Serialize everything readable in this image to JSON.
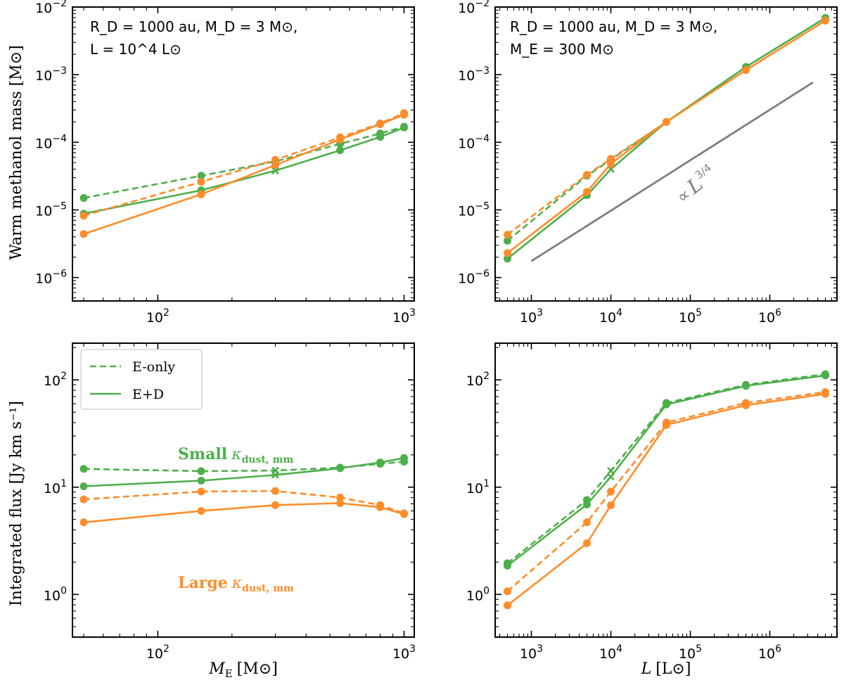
{
  "colors": {
    "green": "#4daf4a",
    "orange": "#ff8c2a",
    "ref": "#7f7f7f"
  },
  "axis_labels": {
    "ylabel_top": "Warm methanol mass [M⊙]",
    "ylabel_bottom": "Integrated flux [Jy km s⁻¹]",
    "xlabel_left_var": "M",
    "xlabel_left_sub": "E",
    "xlabel_left_unit": "[M⊙]",
    "xlabel_right_var": "L",
    "xlabel_right_unit": "[L⊙]"
  },
  "annotations": {
    "tl_line1": "R_D = 1000 au, M_D = 3 M⊙,",
    "tl_line2": "L = 10^4 L⊙",
    "tr_line1": "R_D = 1000 au, M_D = 3 M⊙,",
    "tr_line2": "M_E = 300 M⊙",
    "ref_label": "∝ L^3/4",
    "ref_prop": "∝",
    "ref_var": "L",
    "ref_exp": "3/4",
    "small_bold": "Small",
    "small_kappa": "κ",
    "small_sub": "dust, mm",
    "large_bold": "Large",
    "large_kappa": "κ",
    "large_sub": "dust, mm"
  },
  "legend": {
    "dashed": "E-only",
    "solid": "E+D"
  },
  "ticklabels": {
    "base": "10",
    "y_top_exps": [
      "−6",
      "−5",
      "−4",
      "−3",
      "−2"
    ],
    "y_bottom_exps": [
      "0",
      "1",
      "2"
    ],
    "x_left_exps": [
      "2",
      "3"
    ],
    "x_right_exps": [
      "3",
      "4",
      "5",
      "6"
    ]
  },
  "chart_data": [
    {
      "type": "line",
      "panel": "top-left",
      "xscale": "log",
      "yscale": "log",
      "xlim": [
        45,
        1100
      ],
      "ylim": [
        4.5e-07,
        0.01
      ],
      "xlabel": "M_E [M⊙]",
      "ylabel": "Warm methanol mass [M⊙]",
      "series": [
        {
          "name": "E-only (small κ)",
          "color": "green",
          "dash": true,
          "x": [
            50,
            150,
            300,
            550,
            800,
            1000
          ],
          "y": [
            1.5e-05,
            3.2e-05,
            5.2e-05,
            9.5e-05,
            0.000135,
            0.00017
          ],
          "cross_index": -1
        },
        {
          "name": "E+D (small κ)",
          "color": "green",
          "dash": false,
          "x": [
            50,
            150,
            300,
            550,
            800,
            1000
          ],
          "y": [
            8.8e-06,
            1.95e-05,
            3.8e-05,
            7.6e-05,
            0.00012,
            0.000165
          ],
          "cross_index": 2
        },
        {
          "name": "E-only (large κ)",
          "color": "orange",
          "dash": true,
          "x": [
            50,
            150,
            300,
            550,
            800,
            1000
          ],
          "y": [
            8.2e-06,
            2.6e-05,
            5.5e-05,
            0.000118,
            0.00019,
            0.00027
          ],
          "cross_index": -1
        },
        {
          "name": "E+D (large κ)",
          "color": "orange",
          "dash": false,
          "x": [
            50,
            150,
            300,
            550,
            800,
            1000
          ],
          "y": [
            4.4e-06,
            1.7e-05,
            4.6e-05,
            0.00011,
            0.000185,
            0.000255
          ],
          "cross_index": -1
        }
      ]
    },
    {
      "type": "line",
      "panel": "top-right",
      "xscale": "log",
      "yscale": "log",
      "xlim": [
        350,
        7000000
      ],
      "ylim": [
        4.5e-07,
        0.01
      ],
      "xlabel": "L [L⊙]",
      "ylabel": "",
      "series": [
        {
          "name": "E-only (small κ)",
          "color": "green",
          "dash": true,
          "x": [
            500,
            5000,
            10000,
            50000,
            500000,
            5000000
          ],
          "y": [
            3.5e-06,
            3.2e-05,
            5.5e-05,
            0.0002,
            0.0013,
            0.0069
          ],
          "cross_index": -1
        },
        {
          "name": "E+D (small κ)",
          "color": "green",
          "dash": false,
          "x": [
            500,
            5000,
            10000,
            50000,
            500000,
            5000000
          ],
          "y": [
            1.9e-06,
            1.65e-05,
            4e-05,
            0.0002,
            0.0013,
            0.0069
          ],
          "cross_index": 2
        },
        {
          "name": "E-only (large κ)",
          "color": "orange",
          "dash": true,
          "x": [
            500,
            5000,
            10000,
            50000,
            500000,
            5000000
          ],
          "y": [
            4.3e-06,
            3.3e-05,
            5.7e-05,
            0.0002,
            0.00117,
            0.0063
          ],
          "cross_index": -1
        },
        {
          "name": "E+D (large κ)",
          "color": "orange",
          "dash": false,
          "x": [
            500,
            5000,
            10000,
            50000,
            500000,
            5000000
          ],
          "y": [
            2.3e-06,
            1.85e-05,
            4.8e-05,
            0.0002,
            0.00117,
            0.0063
          ],
          "cross_index": -1
        },
        {
          "name": "∝ L^3/4 reference",
          "color": "ref",
          "dash": false,
          "marker": false,
          "x": [
            1000,
            3500000
          ],
          "y": [
            1.75e-06,
            0.00077
          ]
        }
      ]
    },
    {
      "type": "line",
      "panel": "bottom-left",
      "xscale": "log",
      "yscale": "log",
      "xlim": [
        45,
        1100
      ],
      "ylim": [
        0.4,
        220
      ],
      "xlabel": "M_E [M⊙]",
      "ylabel": "Integrated flux [Jy km s⁻¹]",
      "series": [
        {
          "name": "E-only (small κ)",
          "color": "green",
          "dash": true,
          "x": [
            50,
            150,
            300,
            550,
            800,
            1000
          ],
          "y": [
            14.8,
            14.1,
            14.3,
            15.2,
            16.5,
            17.3
          ],
          "cross_index": 2
        },
        {
          "name": "E+D (small κ)",
          "color": "green",
          "dash": false,
          "x": [
            50,
            150,
            300,
            550,
            800,
            1000
          ],
          "y": [
            10.2,
            11.5,
            13.0,
            15.0,
            17.0,
            18.7
          ],
          "cross_index": 2
        },
        {
          "name": "E-only (large κ)",
          "color": "orange",
          "dash": true,
          "x": [
            50,
            150,
            300,
            550,
            800,
            1000
          ],
          "y": [
            7.7,
            9.1,
            9.2,
            8.0,
            6.8,
            5.7
          ],
          "cross_index": -1
        },
        {
          "name": "E+D (large κ)",
          "color": "orange",
          "dash": false,
          "x": [
            50,
            150,
            300,
            550,
            800,
            1000
          ],
          "y": [
            4.7,
            6.0,
            6.8,
            7.1,
            6.5,
            5.6
          ],
          "cross_index": -1
        }
      ]
    },
    {
      "type": "line",
      "panel": "bottom-right",
      "xscale": "log",
      "yscale": "log",
      "xlim": [
        350,
        7000000
      ],
      "ylim": [
        0.4,
        220
      ],
      "xlabel": "L [L⊙]",
      "ylabel": "",
      "series": [
        {
          "name": "E-only (small κ)",
          "color": "green",
          "dash": true,
          "x": [
            500,
            5000,
            10000,
            50000,
            500000,
            5000000
          ],
          "y": [
            1.95,
            7.6,
            14.2,
            61,
            90,
            113
          ],
          "cross_index": 2
        },
        {
          "name": "E+D (small κ)",
          "color": "green",
          "dash": false,
          "x": [
            500,
            5000,
            10000,
            50000,
            500000,
            5000000
          ],
          "y": [
            1.85,
            6.9,
            12.5,
            59,
            88,
            110
          ],
          "cross_index": 2
        },
        {
          "name": "E-only (large κ)",
          "color": "orange",
          "dash": true,
          "x": [
            500,
            5000,
            10000,
            50000,
            500000,
            5000000
          ],
          "y": [
            1.07,
            4.7,
            9.1,
            40,
            61,
            77
          ],
          "cross_index": -1
        },
        {
          "name": "E+D (large κ)",
          "color": "orange",
          "dash": false,
          "x": [
            500,
            5000,
            10000,
            50000,
            500000,
            5000000
          ],
          "y": [
            0.79,
            3.0,
            6.8,
            38,
            58,
            74
          ],
          "cross_index": -1
        }
      ]
    }
  ]
}
